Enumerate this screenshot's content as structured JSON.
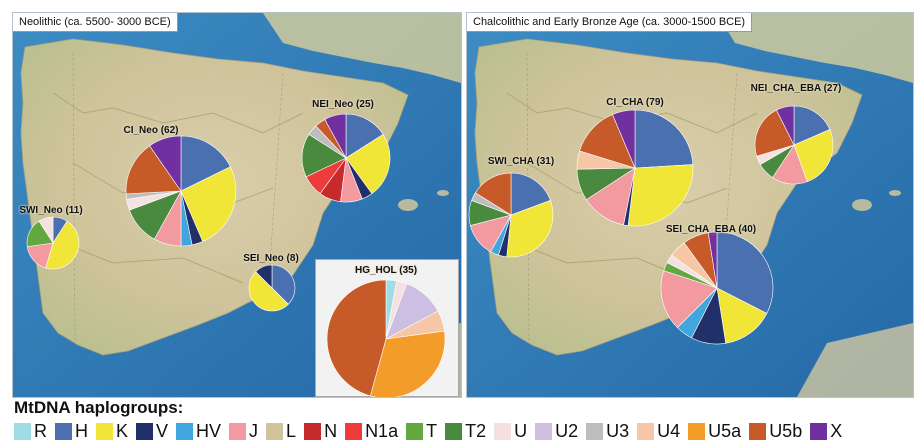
{
  "panels": [
    {
      "title": "Neolithic (ca. 5500- 3000 BCE)"
    },
    {
      "title": "Chalcolithic and Early Bronze Age (ca. 3000-1500 BCE)"
    }
  ],
  "legend": {
    "title": "MtDNA haplogroups:",
    "items": [
      {
        "label": "R",
        "color": "#9ddde3"
      },
      {
        "label": "H",
        "color": "#4a70b0"
      },
      {
        "label": "K",
        "color": "#f1e638"
      },
      {
        "label": "V",
        "color": "#22306a"
      },
      {
        "label": "HV",
        "color": "#41a6dd"
      },
      {
        "label": "J",
        "color": "#f39aa0"
      },
      {
        "label": "L",
        "color": "#d1c39a"
      },
      {
        "label": "N",
        "color": "#c72a2a"
      },
      {
        "label": "N1a",
        "color": "#ee3b3b"
      },
      {
        "label": "T",
        "color": "#63a83e"
      },
      {
        "label": "T2",
        "color": "#4a8a3e"
      },
      {
        "label": "U",
        "color": "#f6e1e1"
      },
      {
        "label": "U2",
        "color": "#cdbfe2"
      },
      {
        "label": "U3",
        "color": "#bdbdbd"
      },
      {
        "label": "U4",
        "color": "#f6c7a6"
      },
      {
        "label": "U5a",
        "color": "#f39c2a"
      },
      {
        "label": "U5b",
        "color": "#c65a28"
      },
      {
        "label": "X",
        "color": "#7030a0"
      }
    ]
  },
  "pies": [
    {
      "label": "CI_Neo (62)",
      "panel": 0,
      "n": 62,
      "slices": [
        [
          "H",
          11
        ],
        [
          "K",
          16
        ],
        [
          "V",
          2
        ],
        [
          "HV",
          2
        ],
        [
          "J",
          5
        ],
        [
          "T2",
          7
        ],
        [
          "U",
          2
        ],
        [
          "U3",
          1
        ],
        [
          "U5b",
          10
        ],
        [
          "X",
          6
        ]
      ]
    },
    {
      "label": "NEI_Neo (25)",
      "panel": 0,
      "n": 25,
      "slices": [
        [
          "H",
          4
        ],
        [
          "K",
          6
        ],
        [
          "V",
          1
        ],
        [
          "J",
          2
        ],
        [
          "N",
          2
        ],
        [
          "N1a",
          2
        ],
        [
          "T2",
          4
        ],
        [
          "U3",
          1
        ],
        [
          "U5b",
          1
        ],
        [
          "X",
          2
        ]
      ]
    },
    {
      "label": "SWI_Neo (11)",
      "panel": 0,
      "n": 11,
      "slices": [
        [
          "H",
          1
        ],
        [
          "K",
          5
        ],
        [
          "J",
          2
        ],
        [
          "T",
          2
        ],
        [
          "U",
          1
        ]
      ]
    },
    {
      "label": "SEI_Neo (8)",
      "panel": 0,
      "n": 8,
      "slices": [
        [
          "H",
          3
        ],
        [
          "K",
          4
        ],
        [
          "V",
          1
        ]
      ]
    },
    {
      "label": "HG_HOL (35)",
      "panel": 0,
      "n": 35,
      "slices": [
        [
          "R",
          1
        ],
        [
          "U",
          1
        ],
        [
          "U2",
          4
        ],
        [
          "U4",
          2
        ],
        [
          "U5a",
          11
        ],
        [
          "U5b",
          16
        ]
      ]
    },
    {
      "label": "CI_CHA (79)",
      "panel": 1,
      "n": 79,
      "slices": [
        [
          "H",
          19
        ],
        [
          "K",
          22
        ],
        [
          "V",
          1
        ],
        [
          "J",
          10
        ],
        [
          "T2",
          7
        ],
        [
          "U4",
          4
        ],
        [
          "U5b",
          11
        ],
        [
          "X",
          5
        ]
      ]
    },
    {
      "label": "NEI_CHA_EBA (27)",
      "panel": 1,
      "n": 27,
      "slices": [
        [
          "H",
          5
        ],
        [
          "K",
          7
        ],
        [
          "J",
          4
        ],
        [
          "T2",
          2
        ],
        [
          "U",
          1
        ],
        [
          "U5b",
          6
        ],
        [
          "X",
          2
        ]
      ]
    },
    {
      "label": "SWI_CHA (31)",
      "panel": 1,
      "n": 31,
      "slices": [
        [
          "H",
          6
        ],
        [
          "K",
          10
        ],
        [
          "V",
          1
        ],
        [
          "HV",
          1
        ],
        [
          "J",
          4
        ],
        [
          "T2",
          3
        ],
        [
          "U3",
          1
        ],
        [
          "U5b",
          5
        ]
      ]
    },
    {
      "label": "SEI_CHA_EBA (40)",
      "panel": 1,
      "n": 40,
      "slices": [
        [
          "H",
          13
        ],
        [
          "K",
          6
        ],
        [
          "V",
          4
        ],
        [
          "HV",
          2
        ],
        [
          "J",
          7
        ],
        [
          "T",
          1
        ],
        [
          "U",
          1
        ],
        [
          "U4",
          2
        ],
        [
          "U5b",
          3
        ],
        [
          "X",
          1
        ]
      ]
    }
  ]
}
